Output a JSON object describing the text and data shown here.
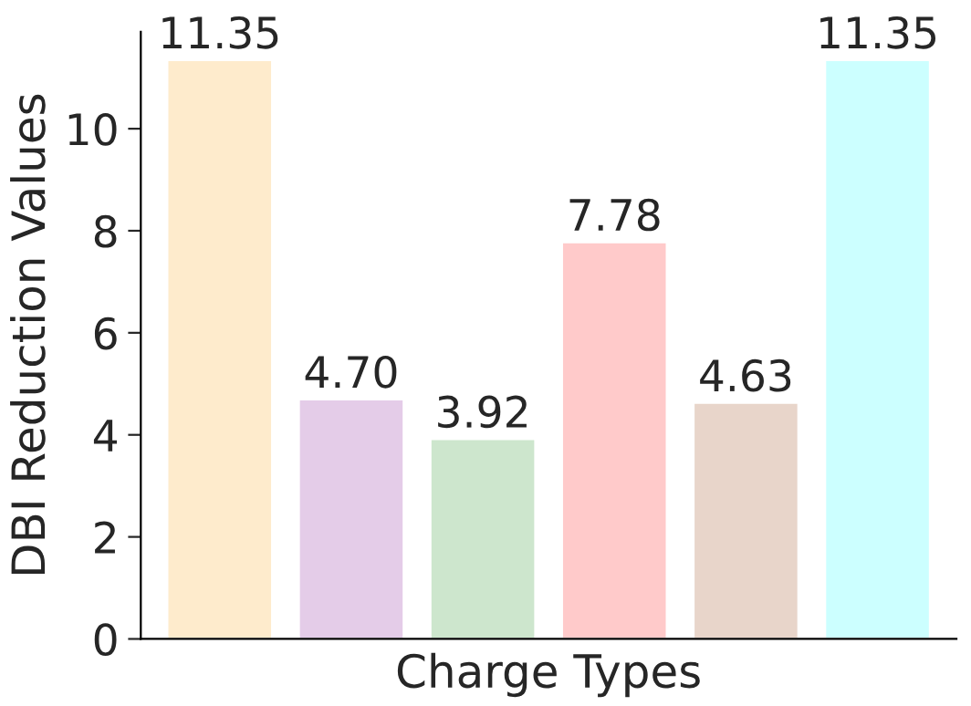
{
  "chart_data": {
    "type": "bar",
    "xlabel": "Charge Types",
    "ylabel": "DBI Reduction Values",
    "categories": [
      null,
      null,
      null,
      null,
      null,
      null
    ],
    "values": [
      11.35,
      4.7,
      3.92,
      7.78,
      4.63,
      11.35
    ],
    "value_labels": [
      "11.35",
      "4.70",
      "3.92",
      "7.78",
      "4.63",
      "11.35"
    ],
    "colors": [
      "#feebcc",
      "#e4cce8",
      "#cde6cd",
      "#ffcaca",
      "#e8d5ca",
      "#ccffff"
    ],
    "ylim": [
      0,
      11.9
    ],
    "yticks": [
      0,
      2,
      4,
      6,
      8,
      10
    ],
    "grid": false,
    "legend": false
  }
}
